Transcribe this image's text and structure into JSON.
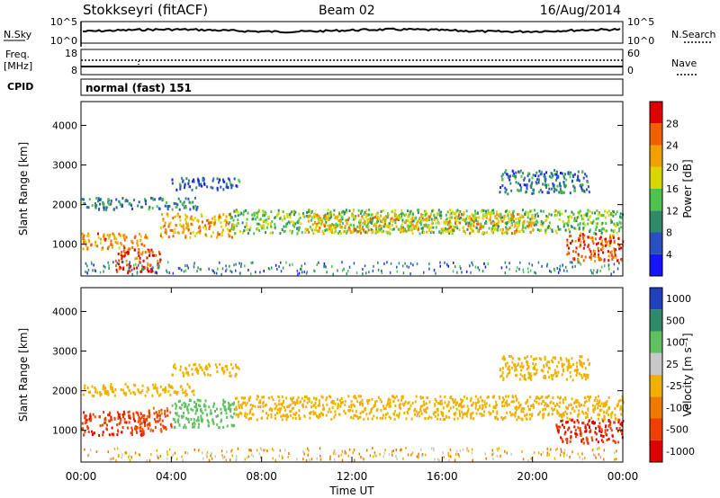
{
  "header": {
    "title": "Stokkseyri (fitACF)",
    "beam": "Beam 02",
    "date": "16/Aug/2014"
  },
  "noise_panel": {
    "left_label": "N.Sky",
    "left_ticks": [
      "10^5",
      "10^0"
    ],
    "right_label": "N.Search",
    "right_ticks": [
      "10^5",
      "10^0"
    ]
  },
  "freq_panel": {
    "left_label_top": "Freq.",
    "left_label_unit": "[MHz]",
    "left_ticks": [
      "18",
      "8"
    ],
    "right_label": "Nave",
    "right_ticks": [
      "60",
      "0"
    ]
  },
  "cpid_panel": {
    "label": "CPID",
    "value": "normal (fast) 151"
  },
  "colors": {
    "power_scale": [
      "#1515ff",
      "#2a4fc0",
      "#2f8a6a",
      "#4ec24e",
      "#d8d800",
      "#f0a000",
      "#f06000",
      "#e00000"
    ],
    "velocity_scale": [
      "#e00000",
      "#f04000",
      "#f07a00",
      "#f0b000",
      "#c8c8c8",
      "#60c060",
      "#2f8a6a",
      "#2040c0"
    ]
  },
  "chart_data": [
    {
      "type": "heatmap",
      "panel": "power",
      "ylabel": "Slant Range [km]",
      "yticks": [
        "1000",
        "2000",
        "3000",
        "4000"
      ],
      "ylim": [
        200,
        4600
      ],
      "xlim": [
        "00:00",
        "24:00"
      ],
      "colorbar_label": "Power [dB]",
      "colorbar_ticks": [
        "4",
        "8",
        "12",
        "16",
        "20",
        "24",
        "28"
      ],
      "colorbar_range": [
        0,
        30
      ],
      "bands": [
        {
          "start_hr": 0.0,
          "end_hr": 3.0,
          "range_km": [
            900,
            1300
          ],
          "value": 22
        },
        {
          "start_hr": 0.0,
          "end_hr": 5.2,
          "range_km": [
            1900,
            2200
          ],
          "value": 9
        },
        {
          "start_hr": 1.5,
          "end_hr": 3.5,
          "range_km": [
            300,
            900
          ],
          "value": 26
        },
        {
          "start_hr": 3.5,
          "end_hr": 6.8,
          "range_km": [
            1200,
            1800
          ],
          "value": 21
        },
        {
          "start_hr": 4.0,
          "end_hr": 7.0,
          "range_km": [
            2400,
            2700
          ],
          "value": 7
        },
        {
          "start_hr": 6.5,
          "end_hr": 24.0,
          "range_km": [
            1300,
            1900
          ],
          "value": 13
        },
        {
          "start_hr": 10.0,
          "end_hr": 20.0,
          "range_km": [
            1300,
            1800
          ],
          "value": 19
        },
        {
          "start_hr": 18.5,
          "end_hr": 22.5,
          "range_km": [
            2300,
            2900
          ],
          "value": 8
        },
        {
          "start_hr": 21.5,
          "end_hr": 24.0,
          "range_km": [
            600,
            1300
          ],
          "value": 25
        }
      ]
    },
    {
      "type": "heatmap",
      "panel": "velocity",
      "ylabel": "Slant Range [km]",
      "yticks": [
        "1000",
        "2000",
        "3000",
        "4000"
      ],
      "ylim": [
        200,
        4600
      ],
      "xlim": [
        "00:00",
        "24:00"
      ],
      "xticks": [
        "00:00",
        "04:00",
        "08:00",
        "12:00",
        "16:00",
        "20:00",
        "00:00"
      ],
      "xlabel": "Time UT",
      "colorbar_label": "Velocity [m s⁻¹]",
      "colorbar_ticks": [
        "1000",
        "500",
        "100",
        "25",
        "-25",
        "-100",
        "-500",
        "-1000"
      ],
      "bands": [
        {
          "start_hr": 0.0,
          "end_hr": 2.8,
          "range_km": [
            900,
            1500
          ],
          "value": -400
        },
        {
          "start_hr": 0.0,
          "end_hr": 5.0,
          "range_km": [
            1900,
            2200
          ],
          "value": 0
        },
        {
          "start_hr": 2.5,
          "end_hr": 4.0,
          "range_km": [
            1000,
            1600
          ],
          "value": -150
        },
        {
          "start_hr": 4.0,
          "end_hr": 6.8,
          "range_km": [
            1100,
            1800
          ],
          "value": 200
        },
        {
          "start_hr": 4.0,
          "end_hr": 7.0,
          "range_km": [
            2400,
            2700
          ],
          "value": 0
        },
        {
          "start_hr": 6.8,
          "end_hr": 24.0,
          "range_km": [
            1300,
            1900
          ],
          "value": 0
        },
        {
          "start_hr": 18.5,
          "end_hr": 22.5,
          "range_km": [
            2300,
            2900
          ],
          "value": 0
        },
        {
          "start_hr": 21.0,
          "end_hr": 24.0,
          "range_km": [
            700,
            1300
          ],
          "value": -500
        }
      ]
    }
  ]
}
